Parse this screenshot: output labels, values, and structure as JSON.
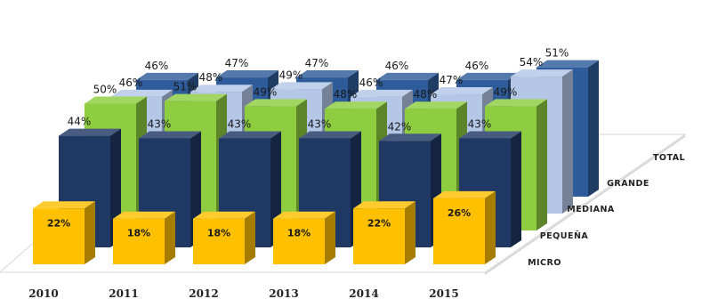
{
  "chart_data": {
    "type": "bar",
    "categories": [
      "2010",
      "2011",
      "2012",
      "2013",
      "2014",
      "2015"
    ],
    "series": [
      {
        "name": "MICRO",
        "values": [
          22,
          18,
          18,
          18,
          22,
          26
        ],
        "color": "#ffc000"
      },
      {
        "name": "PEQUEÑA",
        "values": [
          44,
          43,
          43,
          43,
          42,
          43
        ],
        "color": "#1f3864"
      },
      {
        "name": "MEDIANA",
        "values": [
          50,
          51,
          49,
          48,
          48,
          49
        ],
        "color": "#8dcd3f"
      },
      {
        "name": "GRANDE",
        "values": [
          46,
          48,
          49,
          46,
          47,
          54
        ],
        "color": "#b4c7e7"
      },
      {
        "name": "TOTAL",
        "values": [
          46,
          47,
          47,
          46,
          46,
          51
        ],
        "color": "#2e5c9a"
      }
    ],
    "value_suffix": "%",
    "title": "",
    "xlabel": "",
    "ylabel": "",
    "grid": false,
    "legend": "depth-axis-right"
  }
}
